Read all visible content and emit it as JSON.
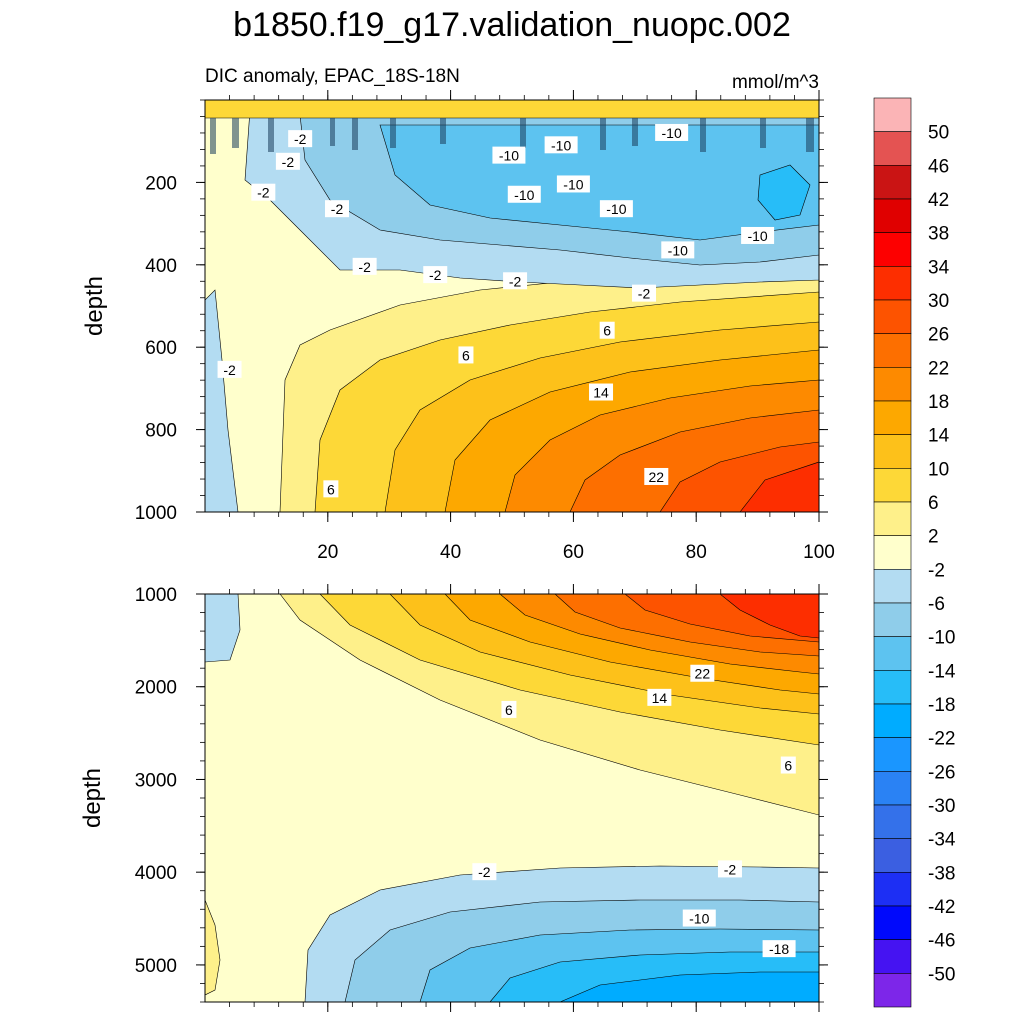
{
  "chart_data": {
    "type": "heatmap",
    "title": "b1850.f19_g17.validation_nuopc.002",
    "subtitle_left": "DIC anomaly, EPAC_18S-18N",
    "subtitle_right": "mmol/m^3",
    "ylabel": "depth",
    "x": {
      "range": [
        0,
        100
      ],
      "ticks": [
        20,
        40,
        60,
        80,
        100
      ]
    },
    "panels": [
      {
        "name": "upper",
        "ylim": [
          0,
          1000
        ],
        "yticks": [
          200,
          400,
          600,
          800,
          1000
        ],
        "levels_shown": [
          -10,
          -6,
          -2,
          2,
          6,
          10,
          14,
          18,
          22,
          26
        ],
        "contour_labels": [
          {
            "text": "-2",
            "x": 15.5,
            "y": 95
          },
          {
            "text": "-2",
            "x": 13.5,
            "y": 150
          },
          {
            "text": "-2",
            "x": 9.5,
            "y": 225
          },
          {
            "text": "-2",
            "x": 21.5,
            "y": 265
          },
          {
            "text": "-10",
            "x": 49.5,
            "y": 135
          },
          {
            "text": "-10",
            "x": 58,
            "y": 110
          },
          {
            "text": "-10",
            "x": 76,
            "y": 80
          },
          {
            "text": "-10",
            "x": 52,
            "y": 230
          },
          {
            "text": "-10",
            "x": 60,
            "y": 205
          },
          {
            "text": "-10",
            "x": 67,
            "y": 265
          },
          {
            "text": "-10",
            "x": 77,
            "y": 365
          },
          {
            "text": "-10",
            "x": 90,
            "y": 330
          },
          {
            "text": "-2",
            "x": 26,
            "y": 405
          },
          {
            "text": "-2",
            "x": 37.5,
            "y": 425
          },
          {
            "text": "-2",
            "x": 50.5,
            "y": 440
          },
          {
            "text": "-2",
            "x": 71.5,
            "y": 470
          },
          {
            "text": "-2",
            "x": 4,
            "y": 655
          },
          {
            "text": "6",
            "x": 42.5,
            "y": 620
          },
          {
            "text": "6",
            "x": 65.5,
            "y": 560
          },
          {
            "text": "14",
            "x": 64.5,
            "y": 710
          },
          {
            "text": "22",
            "x": 73.5,
            "y": 915
          },
          {
            "text": "6",
            "x": 20.5,
            "y": 945
          }
        ]
      },
      {
        "name": "lower",
        "ylim": [
          1000,
          5400
        ],
        "yticks": [
          1000,
          2000,
          3000,
          4000,
          5000
        ],
        "levels_shown": [
          -18,
          -14,
          -10,
          -6,
          -2,
          2,
          6,
          10,
          14,
          18,
          22,
          26,
          30
        ],
        "contour_labels": [
          {
            "text": "22",
            "x": 81,
            "y": 1860
          },
          {
            "text": "14",
            "x": 74,
            "y": 2120
          },
          {
            "text": "6",
            "x": 49.5,
            "y": 2250
          },
          {
            "text": "6",
            "x": 95,
            "y": 2850
          },
          {
            "text": "-2",
            "x": 45.5,
            "y": 4000
          },
          {
            "text": "-2",
            "x": 85.5,
            "y": 3970
          },
          {
            "text": "-10",
            "x": 80.5,
            "y": 4500
          },
          {
            "text": "-18",
            "x": 93.5,
            "y": 4830
          }
        ]
      }
    ],
    "colorbar": {
      "labels": [
        "50",
        "46",
        "42",
        "38",
        "34",
        "30",
        "26",
        "22",
        "18",
        "14",
        "10",
        "6",
        "2",
        "-2",
        "-6",
        "-10",
        "-14",
        "-18",
        "-22",
        "-26",
        "-30",
        "-34",
        "-38",
        "-42",
        "-46",
        "-50"
      ],
      "colors": [
        "#fbb4b6",
        "#e45352",
        "#ca1414",
        "#e00000",
        "#fd0000",
        "#fd2e00",
        "#fd5300",
        "#fd6f00",
        "#fd8a00",
        "#fda800",
        "#fdc11a",
        "#fdd837",
        "#fef08a",
        "#ffffcc",
        "#b3dcf2",
        "#8fcdea",
        "#5dc3f0",
        "#27bdf8",
        "#00acff",
        "#1a96ff",
        "#2a82f4",
        "#3471ea",
        "#3b5fe1",
        "#1d2ff4",
        "#0009fc",
        "#4513f2",
        "#7d26e9"
      ]
    }
  }
}
